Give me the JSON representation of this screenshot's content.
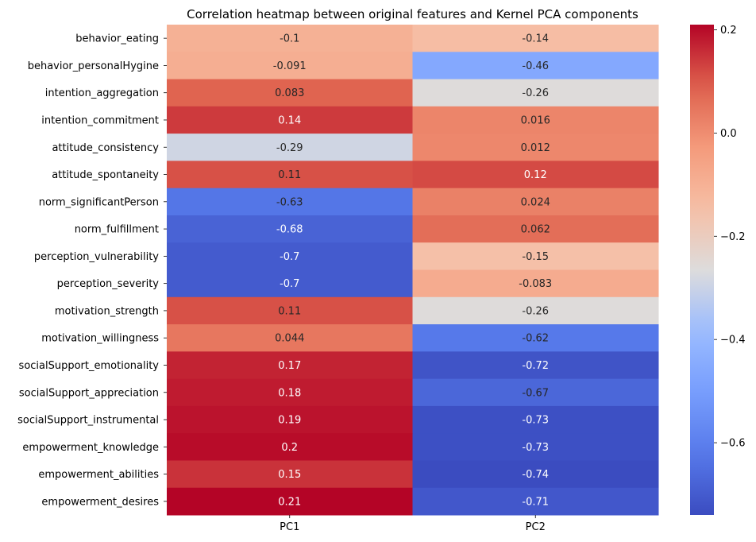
{
  "chart_data": {
    "type": "heatmap",
    "title": "Correlation heatmap between original features and Kernel PCA components",
    "columns": [
      "PC1",
      "PC2"
    ],
    "rows": [
      "behavior_eating",
      "behavior_personalHygine",
      "intention_aggregation",
      "intention_commitment",
      "attitude_consistency",
      "attitude_spontaneity",
      "norm_significantPerson",
      "norm_fulfillment",
      "perception_vulnerability",
      "perception_severity",
      "motivation_strength",
      "motivation_willingness",
      "socialSupport_emotionality",
      "socialSupport_appreciation",
      "socialSupport_instrumental",
      "empowerment_knowledge",
      "empowerment_abilities",
      "empowerment_desires"
    ],
    "values": [
      [
        -0.1,
        -0.14
      ],
      [
        -0.091,
        -0.46
      ],
      [
        0.083,
        -0.26
      ],
      [
        0.14,
        0.016
      ],
      [
        -0.29,
        0.012
      ],
      [
        0.11,
        0.12
      ],
      [
        -0.63,
        0.024
      ],
      [
        -0.68,
        0.062
      ],
      [
        -0.7,
        -0.15
      ],
      [
        -0.7,
        -0.083
      ],
      [
        0.11,
        -0.26
      ],
      [
        0.044,
        -0.62
      ],
      [
        0.17,
        -0.72
      ],
      [
        0.18,
        -0.67
      ],
      [
        0.19,
        -0.73
      ],
      [
        0.2,
        -0.73
      ],
      [
        0.15,
        -0.74
      ],
      [
        0.21,
        -0.71
      ]
    ],
    "labels": [
      [
        "-0.1",
        "-0.14"
      ],
      [
        "-0.091",
        "-0.46"
      ],
      [
        "0.083",
        "-0.26"
      ],
      [
        "0.14",
        "0.016"
      ],
      [
        "-0.29",
        "0.012"
      ],
      [
        "0.11",
        "0.12"
      ],
      [
        "-0.63",
        "0.024"
      ],
      [
        "-0.68",
        "0.062"
      ],
      [
        "-0.7",
        "-0.15"
      ],
      [
        "-0.7",
        "-0.083"
      ],
      [
        "0.11",
        "-0.26"
      ],
      [
        "0.044",
        "-0.62"
      ],
      [
        "0.17",
        "-0.72"
      ],
      [
        "0.18",
        "-0.67"
      ],
      [
        "0.19",
        "-0.73"
      ],
      [
        "0.2",
        "-0.73"
      ],
      [
        "0.15",
        "-0.74"
      ],
      [
        "0.21",
        "-0.71"
      ]
    ],
    "colormap": "coolwarm",
    "vmin": -0.74,
    "vmax": 0.21,
    "colorbar_ticks": [
      0.2,
      0.0,
      -0.2,
      -0.4,
      -0.6
    ],
    "colorbar_tick_labels": [
      "0.2",
      "0.0",
      "−0.2",
      "−0.4",
      "−0.6"
    ],
    "legend": "colorbar-right",
    "grid": false
  }
}
